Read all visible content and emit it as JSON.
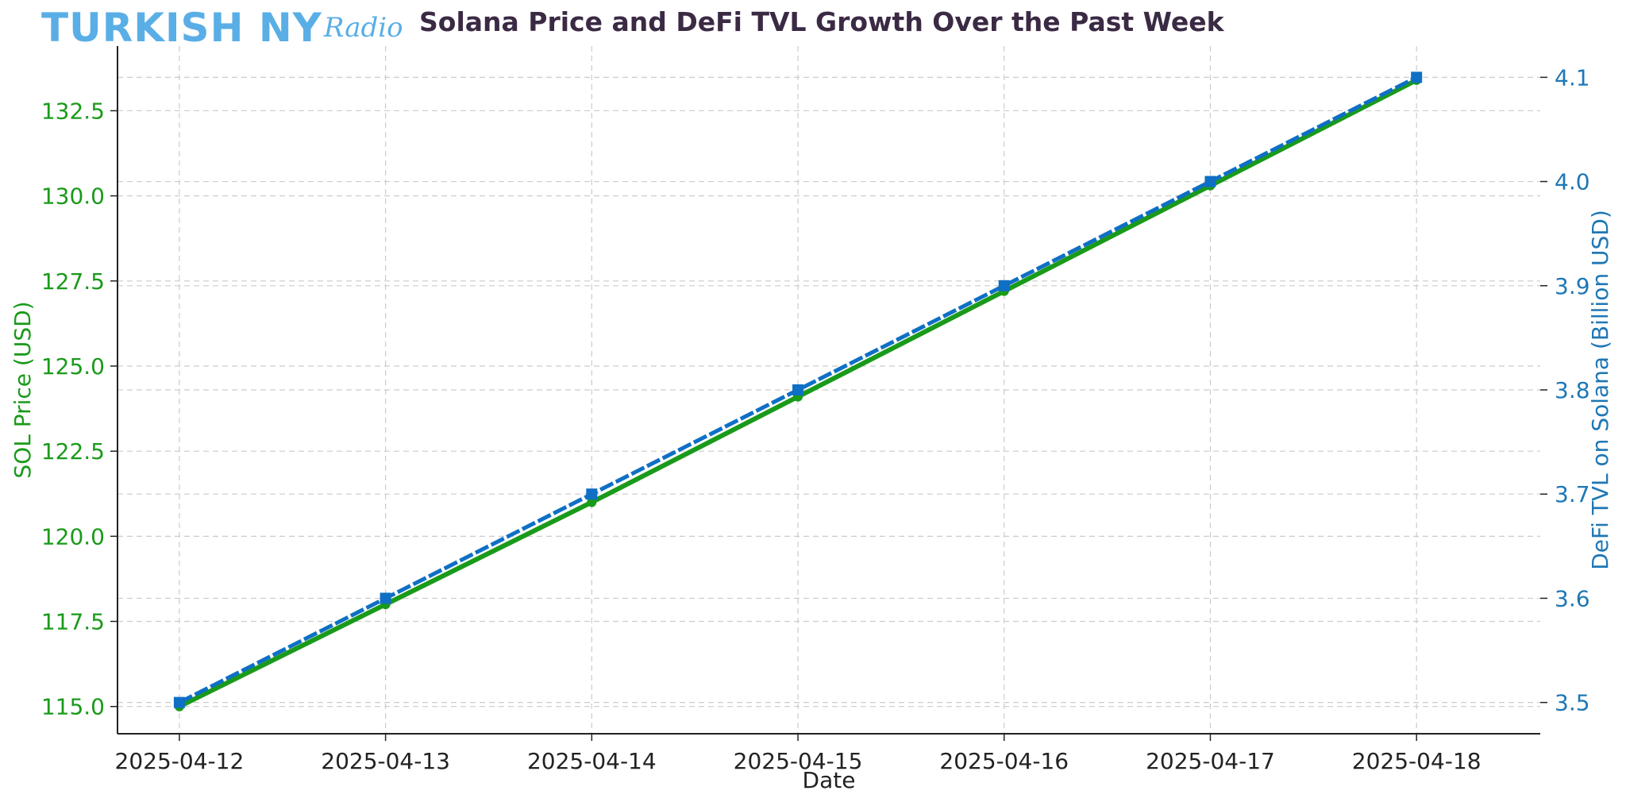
{
  "header": {
    "logo_main": "TURKISH NY",
    "logo_sub": "Radio"
  },
  "colors": {
    "price": "#1a9a1a",
    "tvl": "#1f77b4",
    "tvl_line": "#0f6fc5",
    "title": "#3b2a44",
    "logo": "#5aaee6",
    "grid": "#cccccc"
  },
  "chart_data": {
    "type": "line",
    "title": "Solana Price and DeFi TVL Growth Over the Past Week",
    "xlabel": "Date",
    "ylabel_left": "SOL Price (USD)",
    "ylabel_right": "DeFi TVL on Solana (Billion USD)",
    "x_tick_labels": [
      "2025-04-12",
      "2025-04-13",
      "2025-04-14",
      "2025-04-15",
      "2025-04-16",
      "2025-04-17",
      "2025-04-18"
    ],
    "x_dates": [
      "2025-04-12",
      "2025-04-13",
      "2025-04-14",
      "2025-04-15",
      "2025-04-16",
      "2025-04-17",
      "2025-04-18"
    ],
    "y_left_ticks": [
      "115.0",
      "117.5",
      "120.0",
      "122.5",
      "125.0",
      "127.5",
      "130.0",
      "132.5"
    ],
    "y_right_ticks": [
      "3.5",
      "3.6",
      "3.7",
      "3.8",
      "3.9",
      "4.0",
      "4.1"
    ],
    "ylim_left": [
      114.2,
      134.4
    ],
    "ylim_right": [
      3.47,
      4.13
    ],
    "grid": true,
    "series": [
      {
        "axis": "left",
        "values": [
          115,
          118,
          121,
          124.1,
          127.2,
          130.3,
          133.4
        ]
      },
      {
        "axis": "right",
        "values": [
          3.5,
          3.6,
          3.7,
          3.8,
          3.9,
          4.0,
          4.1
        ]
      }
    ]
  }
}
